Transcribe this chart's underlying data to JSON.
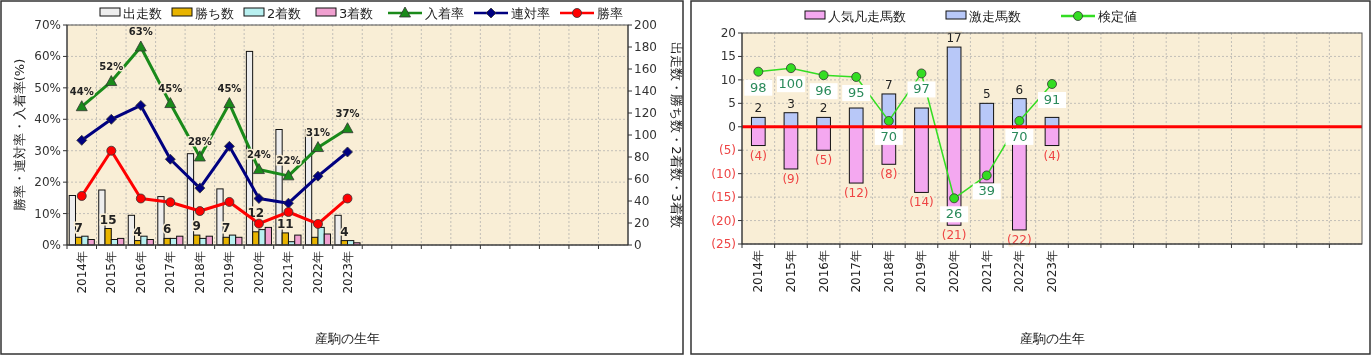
{
  "chart_data": [
    {
      "type": "bar",
      "xlabel": "産駒の生年",
      "ylabel": "勝率・連対率・入着率(%)",
      "y2label": "出走数・勝ち数・2着数・3着数",
      "categories": [
        "2014年",
        "2015年",
        "2016年",
        "2017年",
        "2018年",
        "2019年",
        "2020年",
        "2021年",
        "2022年",
        "2023年",
        null,
        null,
        null,
        null,
        null,
        null,
        null,
        null,
        null
      ],
      "series": [
        {
          "name": "出走数",
          "axis": "y2",
          "color": "#eeeeee",
          "values": [
            45,
            50,
            27,
            44,
            83,
            51,
            176,
            105,
            105,
            27,
            null,
            null,
            null,
            null,
            null,
            null,
            null,
            null,
            null
          ]
        },
        {
          "name": "勝ち数",
          "axis": "y2",
          "color": "#e8b400",
          "values": [
            7,
            15,
            4,
            6,
            9,
            7,
            12,
            11,
            7,
            4,
            null,
            null,
            null,
            null,
            null,
            null,
            null,
            null,
            null
          ],
          "value_labels": [
            "7",
            "15",
            "4",
            "6",
            "9",
            "7",
            "12",
            "11",
            null,
            "4",
            null,
            null,
            null,
            null,
            null,
            null,
            null,
            null,
            null
          ]
        },
        {
          "name": "2着数",
          "axis": "y2",
          "color": "#b8f0f0",
          "values": [
            8,
            5,
            8,
            6,
            6,
            9,
            14,
            3,
            16,
            4,
            null,
            null,
            null,
            null,
            null,
            null,
            null,
            null,
            null
          ]
        },
        {
          "name": "3着数",
          "axis": "y2",
          "color": "#f0a0d0",
          "values": [
            5,
            6,
            5,
            8,
            8,
            7,
            16,
            9,
            10,
            2,
            null,
            null,
            null,
            null,
            null,
            null,
            null,
            null,
            null
          ]
        },
        {
          "name": "入着率",
          "type": "line",
          "axis": "y",
          "color": "#1a8a1a",
          "marker": "triangle",
          "values": [
            44,
            52,
            63,
            45,
            28,
            45,
            24,
            22,
            31,
            37,
            null,
            null,
            null,
            null,
            null,
            null,
            null,
            null,
            null
          ],
          "value_labels": [
            "44%",
            "52%",
            "63%",
            "45%",
            "28%",
            "45%",
            "24%",
            "22%",
            "31%",
            "37%",
            null,
            null,
            null,
            null,
            null,
            null,
            null,
            null,
            null
          ]
        },
        {
          "name": "連対率",
          "type": "line",
          "axis": "y",
          "color": "#000080",
          "marker": "diamond",
          "values": [
            33.3,
            40,
            44.4,
            27.3,
            18.1,
            31.4,
            14.8,
            13.3,
            21.9,
            29.6,
            null,
            null,
            null,
            null,
            null,
            null,
            null,
            null,
            null
          ]
        },
        {
          "name": "勝率",
          "type": "line",
          "axis": "y",
          "color": "#ff0000",
          "marker": "circle",
          "values": [
            15.6,
            30,
            14.8,
            13.6,
            10.8,
            13.7,
            6.8,
            10.5,
            6.7,
            14.8,
            null,
            null,
            null,
            null,
            null,
            null,
            null,
            null,
            null
          ]
        }
      ],
      "ylim": [
        0,
        70
      ],
      "yticks": [
        {
          "value": 0,
          "label": "0%"
        },
        {
          "value": 10,
          "label": "10%"
        },
        {
          "value": 20,
          "label": "20%"
        },
        {
          "value": 30,
          "label": "30%"
        },
        {
          "value": 40,
          "label": "40%"
        },
        {
          "value": 50,
          "label": "50%"
        },
        {
          "value": 60,
          "label": "60%"
        },
        {
          "value": 70,
          "label": "70%"
        }
      ],
      "y2lim": [
        0,
        200
      ],
      "y2ticks": [
        0,
        20,
        40,
        60,
        80,
        100,
        120,
        140,
        160,
        180,
        200
      ],
      "grid": true,
      "legend": "top"
    },
    {
      "type": "bar",
      "xlabel": "産駒の生年",
      "stacked": true,
      "categories": [
        "2014年",
        "2015年",
        "2016年",
        "2017年",
        "2018年",
        "2019年",
        "2020年",
        "2021年",
        "2022年",
        "2023年",
        null,
        null,
        null,
        null,
        null,
        null,
        null,
        null,
        null
      ],
      "series": [
        {
          "name": "人気凡走馬数",
          "color": "#f4a8f0",
          "values": [
            -4,
            -9,
            -5,
            -12,
            -8,
            -14,
            -21,
            -12,
            -22,
            -4,
            null,
            null,
            null,
            null,
            null,
            null,
            null,
            null,
            null
          ],
          "value_labels": [
            "(4)",
            "(9)",
            "(5)",
            "(12)",
            "(8)",
            "(14)",
            "(21)",
            null,
            "(22)",
            "(4)",
            null,
            null,
            null,
            null,
            null,
            null,
            null,
            null,
            null
          ]
        },
        {
          "name": "激走馬数",
          "color": "#b8c8f8",
          "values": [
            2,
            3,
            2,
            4,
            7,
            4,
            17,
            5,
            6,
            2,
            null,
            null,
            null,
            null,
            null,
            null,
            null,
            null,
            null
          ],
          "value_labels": [
            "2",
            "3",
            "2",
            null,
            "7",
            null,
            "17",
            "5",
            "6",
            null,
            null,
            null,
            null,
            null,
            null,
            null,
            null,
            null,
            null
          ]
        },
        {
          "name": "検定値",
          "type": "line",
          "axis": "y2",
          "color": "#33dd22",
          "marker": "circle",
          "values": [
            98,
            100,
            96,
            95,
            70,
            97,
            26,
            39,
            70,
            91,
            null,
            null,
            null,
            null,
            null,
            null,
            null,
            null,
            null
          ],
          "value_labels": [
            "98",
            "100",
            "96",
            "95",
            "70",
            "97",
            "26",
            "39",
            "70",
            "91",
            null,
            null,
            null,
            null,
            null,
            null,
            null,
            null,
            null
          ]
        }
      ],
      "ylim": [
        -25,
        20
      ],
      "yticks": [
        20,
        15,
        10,
        5,
        0,
        {
          "value": -5,
          "label": "(5)"
        },
        {
          "value": -10,
          "label": "(10)"
        },
        {
          "value": -15,
          "label": "(15)"
        },
        {
          "value": -20,
          "label": "(20)"
        },
        {
          "value": -25,
          "label": "(25)"
        }
      ],
      "y2lim": [
        0,
        120
      ],
      "ref_lines": [
        {
          "axis": "y",
          "value": 0,
          "color": "#ff0000"
        }
      ],
      "grid": true,
      "legend": "top"
    }
  ]
}
